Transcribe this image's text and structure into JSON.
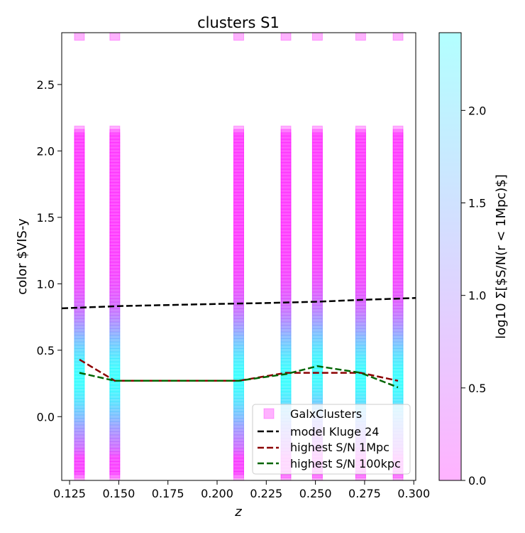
{
  "chart_data": {
    "type": "scatter",
    "title": "clusters S1",
    "xlabel": "z",
    "ylabel": "color $VIS-y",
    "xlim": [
      0.121,
      0.301
    ],
    "ylim": [
      -0.48,
      2.89
    ],
    "x_ticks": [
      0.125,
      0.15,
      0.175,
      0.2,
      0.225,
      0.25,
      0.275,
      0.3
    ],
    "x_tick_labels": [
      "0.125",
      "0.150",
      "0.175",
      "0.200",
      "0.225",
      "0.250",
      "0.275",
      "0.300"
    ],
    "y_ticks": [
      0.0,
      0.5,
      1.0,
      1.5,
      2.0,
      2.5
    ],
    "y_tick_labels": [
      "0.0",
      "0.5",
      "1.0",
      "1.5",
      "2.0",
      "2.5"
    ],
    "colorbar": {
      "label": "log10 Σ[$S/N(r < 1Mpc)$]",
      "range": [
        0.0,
        2.42
      ],
      "ticks": [
        0.0,
        0.5,
        1.0,
        1.5,
        2.0
      ],
      "tick_labels": [
        "0.0",
        "0.5",
        "1.0",
        "1.5",
        "2.0"
      ],
      "color_low": "#ff00ff",
      "color_high": "#00ffff",
      "alpha": 0.3
    },
    "scatter": {
      "name": "GalxClusters",
      "marker": "square",
      "color": "#ff00ff",
      "cluster_z": [
        0.13,
        0.148,
        0.211,
        0.235,
        0.251,
        0.273,
        0.292
      ],
      "color_min": -0.45,
      "color_max": 2.15,
      "color_step": 0.025,
      "top_outlier_color": 2.87,
      "peak_color": [
        0.3,
        0.3,
        0.3,
        0.3,
        0.35,
        0.3,
        0.28
      ]
    },
    "series": [
      {
        "name": "model Kluge 24",
        "color": "#000000",
        "dash": true,
        "x": [
          0.121,
          0.15,
          0.175,
          0.2,
          0.225,
          0.25,
          0.275,
          0.301
        ],
        "y": [
          0.815,
          0.832,
          0.84,
          0.848,
          0.855,
          0.865,
          0.88,
          0.893
        ]
      },
      {
        "name": "highest S/N 1Mpc",
        "color": "#8b0000",
        "dash": true,
        "x": [
          0.13,
          0.148,
          0.211,
          0.235,
          0.251,
          0.273,
          0.292
        ],
        "y": [
          0.43,
          0.27,
          0.27,
          0.33,
          0.33,
          0.33,
          0.27
        ]
      },
      {
        "name": "highest S/N 100kpc",
        "color": "#006400",
        "dash": true,
        "x": [
          0.13,
          0.148,
          0.211,
          0.235,
          0.251,
          0.273,
          0.292
        ],
        "y": [
          0.33,
          0.27,
          0.27,
          0.32,
          0.38,
          0.33,
          0.22
        ]
      }
    ],
    "legend": {
      "placement": "lower right",
      "entries": [
        "GalxClusters",
        "model Kluge 24",
        "highest S/N 1Mpc",
        "highest S/N 100kpc"
      ]
    }
  }
}
